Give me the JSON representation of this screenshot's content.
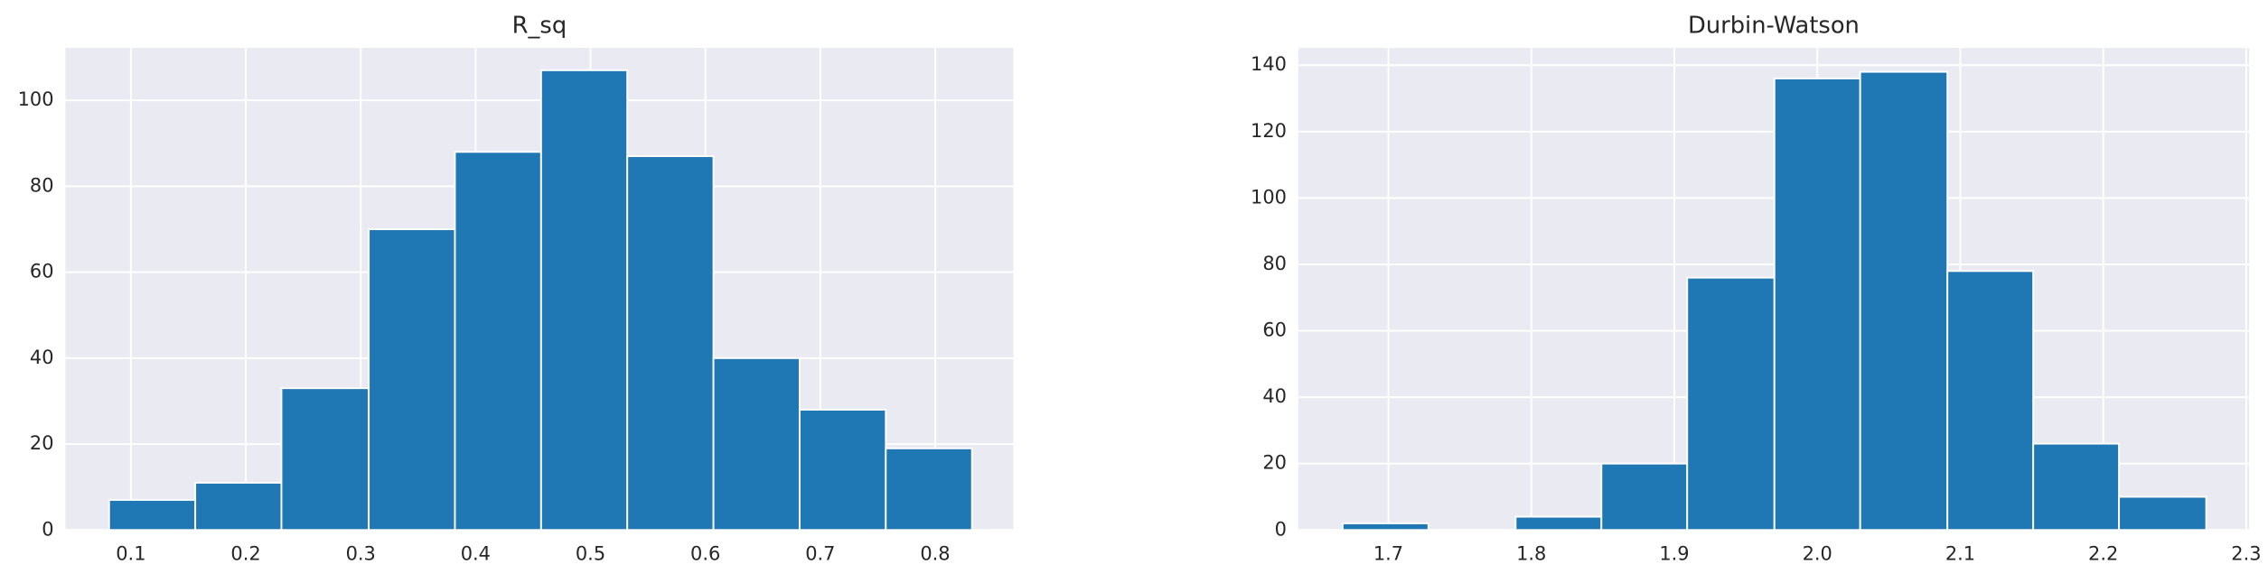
{
  "chart_data": [
    {
      "type": "histogram",
      "title": "R_sq",
      "color": "#1f77b4",
      "grid": true,
      "bins": [
        0.081,
        0.156,
        0.231,
        0.307,
        0.382,
        0.457,
        0.532,
        0.607,
        0.682,
        0.757,
        0.832
      ],
      "values": [
        7,
        11,
        33,
        70,
        88,
        107,
        87,
        40,
        28,
        19
      ],
      "xlim": [
        0.043,
        0.868
      ],
      "ylim": [
        0,
        112.2
      ],
      "xticks": [
        0.1,
        0.2,
        0.3,
        0.4,
        0.5,
        0.6,
        0.7,
        0.8
      ],
      "yticks": [
        0,
        20,
        40,
        60,
        80,
        100
      ]
    },
    {
      "type": "histogram",
      "title": "Durbin-Watson",
      "color": "#1f77b4",
      "grid": true,
      "bins": [
        1.668,
        1.728,
        1.789,
        1.849,
        1.909,
        1.97,
        2.03,
        2.091,
        2.151,
        2.211,
        2.272
      ],
      "values": [
        2,
        0,
        4,
        20,
        76,
        136,
        138,
        78,
        26,
        10
      ],
      "xlim": [
        1.637,
        2.302
      ],
      "ylim": [
        0,
        145.2
      ],
      "xticks": [
        1.7,
        1.8,
        1.9,
        {
          "value": 2.0,
          "label": "2.0"
        },
        2.1,
        2.2,
        2.3
      ],
      "yticks": [
        0,
        20,
        40,
        60,
        80,
        100,
        120,
        140
      ]
    }
  ]
}
